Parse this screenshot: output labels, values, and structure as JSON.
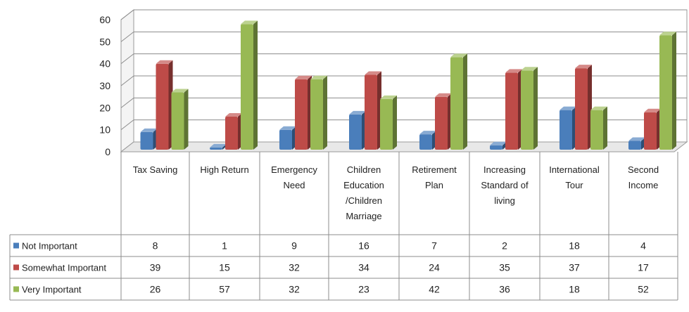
{
  "chart_data": {
    "type": "bar",
    "categories": [
      [
        "Tax Saving"
      ],
      [
        "High Return"
      ],
      [
        "Emergency",
        "Need"
      ],
      [
        "Children",
        "Education",
        "/Children",
        "Marriage"
      ],
      [
        "Retirement",
        "Plan"
      ],
      [
        "Increasing",
        "Standard of",
        "living"
      ],
      [
        "International",
        "Tour"
      ],
      [
        "Second",
        "Income"
      ]
    ],
    "series": [
      {
        "name": "Not Important",
        "color": "#4a7ebb",
        "values": [
          8,
          1,
          9,
          16,
          7,
          2,
          18,
          4
        ]
      },
      {
        "name": "Somewhat Important",
        "color": "#be4b48",
        "values": [
          39,
          15,
          32,
          34,
          24,
          35,
          37,
          17
        ]
      },
      {
        "name": "Very Important",
        "color": "#98b954",
        "values": [
          26,
          57,
          32,
          23,
          42,
          36,
          18,
          52
        ]
      }
    ],
    "yticks": [
      "0",
      "10",
      "20",
      "30",
      "40",
      "50",
      "60"
    ],
    "ylim": [
      0,
      60
    ],
    "grid": true,
    "legend": "data table",
    "style": "3d-clustered-column"
  }
}
